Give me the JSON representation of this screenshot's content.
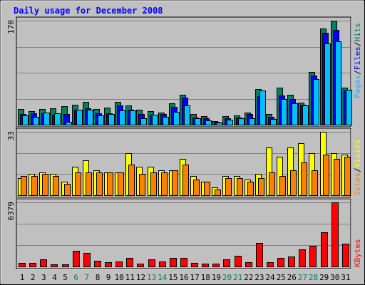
{
  "title": "Daily usage for December 2008",
  "colors": {
    "background": "#c0c0c0",
    "title": "#0000ff",
    "hits": "#00805c",
    "files": "#0000ff",
    "pages": "#00c0ff",
    "visits": "#ffff00",
    "sites": "#ff8000",
    "kbytes": "#ff0000",
    "weekend_label": "#00805c"
  },
  "chart_data": [
    {
      "type": "bar",
      "panel": "hits-files-pages",
      "y_max_label": "170",
      "ylim": [
        0,
        170
      ],
      "legend": [
        {
          "text": "Pages",
          "color": "#00c0ff"
        },
        {
          "text": "Files",
          "color": "#0000ff"
        },
        {
          "text": "Hits",
          "color": "#00805c"
        }
      ],
      "categories": [
        "1",
        "2",
        "3",
        "4",
        "5",
        "6",
        "7",
        "8",
        "9",
        "10",
        "11",
        "12",
        "13",
        "14",
        "15",
        "16",
        "17",
        "18",
        "19",
        "20",
        "21",
        "22",
        "23",
        "24",
        "25",
        "26",
        "27",
        "28",
        "29",
        "30",
        "31"
      ],
      "series": [
        {
          "name": "Hits",
          "values": [
            26,
            22,
            26,
            27,
            30,
            33,
            37,
            26,
            28,
            37,
            31,
            24,
            22,
            20,
            35,
            49,
            17,
            14,
            6,
            14,
            15,
            20,
            58,
            17,
            60,
            49,
            36,
            86,
            157,
            170,
            60
          ]
        },
        {
          "name": "Files",
          "values": [
            18,
            19,
            19,
            16,
            18,
            24,
            27,
            19,
            19,
            31,
            24,
            17,
            16,
            17,
            29,
            44,
            12,
            11,
            5,
            11,
            12,
            17,
            46,
            13,
            48,
            42,
            33,
            80,
            150,
            155,
            56
          ]
        },
        {
          "name": "Pages",
          "values": [
            15,
            13,
            20,
            19,
            5,
            24,
            25,
            15,
            17,
            23,
            23,
            11,
            16,
            13,
            21,
            31,
            10,
            7,
            3,
            8,
            10,
            10,
            56,
            9,
            42,
            35,
            32,
            75,
            133,
            136,
            57
          ]
        }
      ]
    },
    {
      "type": "bar",
      "panel": "visits-sites",
      "y_max_label": "33",
      "ylim": [
        0,
        33
      ],
      "legend": [
        {
          "text": "Sites",
          "color": "#ff8000"
        },
        {
          "text": "Visits",
          "color": "#ffff00"
        }
      ],
      "categories": [
        "1",
        "2",
        "3",
        "4",
        "5",
        "6",
        "7",
        "8",
        "9",
        "10",
        "11",
        "12",
        "13",
        "14",
        "15",
        "16",
        "17",
        "18",
        "19",
        "20",
        "21",
        "22",
        "23",
        "24",
        "25",
        "26",
        "27",
        "28",
        "29",
        "30",
        "31"
      ],
      "series": [
        {
          "name": "Visits",
          "values": [
            9,
            11,
            12,
            11,
            7,
            15,
            18,
            13,
            12,
            12,
            22,
            15,
            15,
            13,
            13,
            19,
            10,
            7,
            4,
            10,
            10,
            8,
            11,
            25,
            20,
            25,
            27,
            22,
            33,
            22,
            21
          ]
        },
        {
          "name": "Sites",
          "values": [
            10,
            10,
            11,
            10,
            6,
            12,
            12,
            12,
            12,
            12,
            16,
            11,
            12,
            12,
            13,
            16,
            8,
            7,
            3,
            9,
            9,
            7,
            9,
            12,
            10,
            13,
            17,
            13,
            21,
            19,
            20
          ]
        }
      ]
    },
    {
      "type": "bar",
      "panel": "kbytes",
      "y_max_label": "6379",
      "ylim": [
        0,
        6379
      ],
      "legend": [
        {
          "text": "KBytes",
          "color": "#ff0000"
        }
      ],
      "categories": [
        "1",
        "2",
        "3",
        "4",
        "5",
        "6",
        "7",
        "8",
        "9",
        "10",
        "11",
        "12",
        "13",
        "14",
        "15",
        "16",
        "17",
        "18",
        "19",
        "20",
        "21",
        "22",
        "23",
        "24",
        "25",
        "26",
        "27",
        "28",
        "29",
        "30",
        "31"
      ],
      "series": [
        {
          "name": "KBytes",
          "values": [
            380,
            380,
            740,
            190,
            200,
            1550,
            1370,
            560,
            460,
            510,
            830,
            260,
            690,
            470,
            860,
            870,
            330,
            280,
            290,
            680,
            1060,
            440,
            2370,
            460,
            870,
            1000,
            1680,
            2080,
            3380,
            6379,
            2290
          ]
        }
      ]
    }
  ],
  "x_labels": [
    {
      "text": "1",
      "weekend": false
    },
    {
      "text": "2",
      "weekend": false
    },
    {
      "text": "3",
      "weekend": false
    },
    {
      "text": "4",
      "weekend": false
    },
    {
      "text": "5",
      "weekend": false
    },
    {
      "text": "6",
      "weekend": true
    },
    {
      "text": "7",
      "weekend": true
    },
    {
      "text": "8",
      "weekend": false
    },
    {
      "text": "9",
      "weekend": false
    },
    {
      "text": "10",
      "weekend": false
    },
    {
      "text": "11",
      "weekend": false
    },
    {
      "text": "12",
      "weekend": false
    },
    {
      "text": "13",
      "weekend": true
    },
    {
      "text": "14",
      "weekend": true
    },
    {
      "text": "15",
      "weekend": false
    },
    {
      "text": "16",
      "weekend": false
    },
    {
      "text": "17",
      "weekend": false
    },
    {
      "text": "18",
      "weekend": false
    },
    {
      "text": "19",
      "weekend": false
    },
    {
      "text": "20",
      "weekend": true
    },
    {
      "text": "21",
      "weekend": true
    },
    {
      "text": "22",
      "weekend": false
    },
    {
      "text": "23",
      "weekend": false
    },
    {
      "text": "24",
      "weekend": false
    },
    {
      "text": "25",
      "weekend": false
    },
    {
      "text": "26",
      "weekend": false
    },
    {
      "text": "27",
      "weekend": true
    },
    {
      "text": "28",
      "weekend": true
    },
    {
      "text": "29",
      "weekend": false
    },
    {
      "text": "30",
      "weekend": false
    },
    {
      "text": "31",
      "weekend": false
    }
  ]
}
